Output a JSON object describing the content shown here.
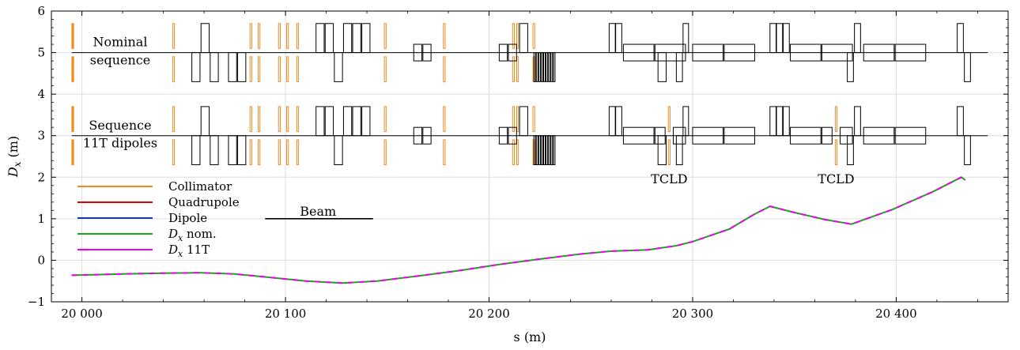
{
  "chart_data": {
    "type": "line",
    "xlabel": "s (m)",
    "ylabel": "D_x (m)",
    "xlim": [
      19985,
      20455
    ],
    "ylim": [
      -1,
      6
    ],
    "xticks": [
      20000,
      20100,
      20200,
      20300,
      20400
    ],
    "xtick_labels": [
      "20 000",
      "20 100",
      "20 200",
      "20 300",
      "20 400"
    ],
    "yticks": [
      -1,
      0,
      1,
      2,
      3,
      4,
      5,
      6
    ],
    "ytick_labels": [
      "−1",
      "0",
      "1",
      "2",
      "3",
      "4",
      "5",
      "6"
    ],
    "grid": true,
    "legend_position": "left",
    "legend": [
      {
        "label": "Collimator",
        "color": "#f28a1e"
      },
      {
        "label": "Quadrupole",
        "color": "#e00000"
      },
      {
        "label": "Dipole",
        "color": "#1030e0"
      },
      {
        "label": "D",
        "sub": "x",
        "rest": " nom.",
        "color": "#22a022"
      },
      {
        "label": "D",
        "sub": "x",
        "rest": " 11T",
        "color": "#ee00ee"
      }
    ],
    "annotations": {
      "nominal_line1": "Nominal",
      "nominal_line2": "sequence",
      "eleven_t_line1": "Sequence",
      "eleven_t_line2": "11T dipoles",
      "tcld_1": "TCLD",
      "tcld_2": "TCLD",
      "beam": "Beam"
    },
    "series": [
      {
        "name": "D_x nom.",
        "color": "#22a022",
        "x": [
          19995,
          20020,
          20040,
          20058,
          20075,
          20090,
          20110,
          20128,
          20145,
          20165,
          20185,
          20205,
          20225,
          20245,
          20260,
          20278,
          20292,
          20300,
          20318,
          20330,
          20338,
          20350,
          20365,
          20378,
          20398,
          20418,
          20432,
          20434
        ],
        "y": [
          -0.36,
          -0.33,
          -0.31,
          -0.3,
          -0.33,
          -0.4,
          -0.5,
          -0.55,
          -0.5,
          -0.38,
          -0.25,
          -0.1,
          0.03,
          0.15,
          0.22,
          0.25,
          0.35,
          0.45,
          0.75,
          1.1,
          1.3,
          1.15,
          0.98,
          0.87,
          1.22,
          1.65,
          2.0,
          1.93
        ]
      },
      {
        "name": "D_x 11T",
        "color": "#ee00ee",
        "dashed": true,
        "x": [
          19995,
          20020,
          20040,
          20058,
          20075,
          20090,
          20110,
          20128,
          20145,
          20165,
          20185,
          20205,
          20225,
          20245,
          20260,
          20278,
          20292,
          20300,
          20318,
          20330,
          20338,
          20350,
          20365,
          20378,
          20398,
          20418,
          20432,
          20434
        ],
        "y": [
          -0.36,
          -0.33,
          -0.31,
          -0.3,
          -0.33,
          -0.4,
          -0.5,
          -0.55,
          -0.5,
          -0.38,
          -0.25,
          -0.1,
          0.03,
          0.15,
          0.22,
          0.25,
          0.35,
          0.45,
          0.75,
          1.1,
          1.3,
          1.15,
          0.98,
          0.87,
          1.22,
          1.65,
          2.0,
          1.93
        ]
      }
    ],
    "lattice": {
      "x_range": [
        19995,
        20445
      ],
      "sequences": [
        {
          "name": "Nominal sequence",
          "baseline": 5.0
        },
        {
          "name": "Sequence 11T dipoles",
          "baseline": 3.0
        }
      ],
      "collimators": [
        19995.5,
        20045,
        20083,
        20087,
        20097,
        20101,
        20106,
        20149,
        20178,
        20212,
        20214,
        20222
      ],
      "quadrupoles": [
        [
          20054,
          20058,
          "down"
        ],
        [
          20058.5,
          20062.5,
          "up"
        ],
        [
          20063,
          20067,
          "down"
        ],
        [
          20072,
          20076,
          "down"
        ],
        [
          20076.5,
          20080.5,
          "down"
        ],
        [
          20115,
          20119,
          "up"
        ],
        [
          20119.5,
          20123.5,
          "up"
        ],
        [
          20124,
          20128,
          "down"
        ],
        [
          20128.5,
          20132.5,
          "up"
        ],
        [
          20133,
          20137,
          "up"
        ],
        [
          20137.5,
          20141.5,
          "up"
        ],
        [
          20215,
          20219,
          "up"
        ],
        [
          20259,
          20262,
          "up"
        ],
        [
          20262.2,
          20265.2,
          "up"
        ],
        [
          20283,
          20287,
          "down"
        ],
        [
          20292,
          20295,
          "down"
        ],
        [
          20295.3,
          20298,
          "up"
        ],
        [
          20338,
          20341,
          "up"
        ],
        [
          20341.2,
          20344.2,
          "up"
        ],
        [
          20344.5,
          20347.5,
          "up"
        ],
        [
          20376,
          20379,
          "down"
        ],
        [
          20379.5,
          20382.5,
          "up"
        ],
        [
          20430,
          20433,
          "up"
        ],
        [
          20433.5,
          20436.5,
          "down"
        ]
      ],
      "small_dipoles": [
        [
          20163,
          20167
        ],
        [
          20167.5,
          20171.5
        ],
        [
          20205,
          20209
        ],
        [
          20209.5,
          20213.5
        ]
      ],
      "thin_elements": {
        "start": 20222,
        "count": 9,
        "step": 1.2,
        "width": 0.8
      },
      "long_dipoles": [
        [
          20266,
          20281
        ],
        [
          20281.5,
          20296.5
        ],
        [
          20300,
          20315
        ],
        [
          20315.5,
          20330.5
        ],
        [
          20348,
          20363
        ],
        [
          20363.5,
          20378.5
        ],
        [
          20384,
          20399
        ],
        [
          20399.5,
          20414.5
        ]
      ],
      "eleven_t_split": [
        {
          "left": [
            20281.5,
            20286.5
          ],
          "right": [
            20290.5,
            20296.5
          ],
          "collimator": 20288.5
        },
        {
          "left": [
            20363.5,
            20368.5
          ],
          "right": [
            20372.5,
            20378.5
          ],
          "collimator": 20370.5
        }
      ],
      "wide_colls": [
        19995.5
      ],
      "beam_arrow": {
        "x0": 20090,
        "x1": 20143,
        "y": 1.0
      }
    }
  }
}
